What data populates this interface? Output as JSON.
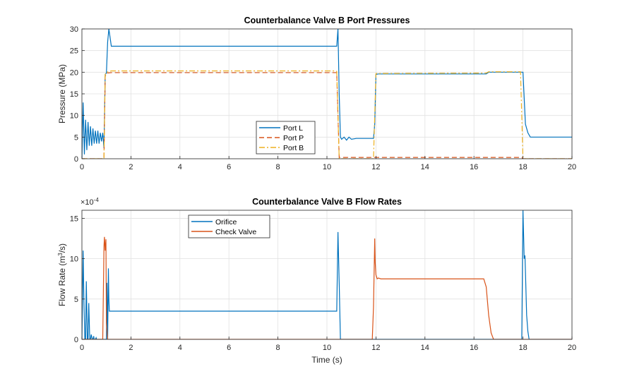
{
  "colors": {
    "blue": "#0072BD",
    "orange": "#D95319",
    "yellow": "#EDB120"
  },
  "chart_data": [
    {
      "type": "line",
      "title": "Counterbalance Valve B Port Pressures",
      "xlabel": "",
      "ylabel": "Pressure (MPa)",
      "xlim": [
        0,
        20
      ],
      "ylim": [
        0,
        30
      ],
      "xticks": [
        "0",
        "2",
        "4",
        "6",
        "8",
        "10",
        "12",
        "14",
        "16",
        "18",
        "20"
      ],
      "yticks": [
        "0",
        "5",
        "10",
        "15",
        "20",
        "25",
        "30"
      ],
      "grid": true,
      "legend_position": "center-bottom",
      "series": [
        {
          "name": "Port L",
          "color": "#0072BD",
          "dash": "solid",
          "x": [
            0,
            0.05,
            0.1,
            0.15,
            0.2,
            0.25,
            0.3,
            0.35,
            0.4,
            0.45,
            0.5,
            0.55,
            0.6,
            0.65,
            0.7,
            0.75,
            0.8,
            0.85,
            0.9,
            0.95,
            1.0,
            1.05,
            1.1,
            1.15,
            1.2,
            1.3,
            10.3,
            10.4,
            10.45,
            10.5,
            10.55,
            10.6,
            10.7,
            10.8,
            10.9,
            11.0,
            11.2,
            11.5,
            11.9,
            11.95,
            12.0,
            12.1,
            12.5,
            16.5,
            16.6,
            17.9,
            17.95,
            18.0,
            18.1,
            18.2,
            18.3,
            18.5,
            20
          ],
          "y": [
            0,
            13,
            1,
            9,
            2,
            8.5,
            3,
            7.5,
            3,
            7,
            3.5,
            6.5,
            3.5,
            6.5,
            3.5,
            6,
            4,
            6,
            2.5,
            19.5,
            19.8,
            27,
            30,
            28,
            26,
            26,
            26,
            26,
            30,
            15,
            5,
            4.5,
            5,
            4.3,
            5,
            4.5,
            4.7,
            4.7,
            4.7,
            8,
            19.5,
            19.6,
            19.6,
            19.6,
            20,
            20,
            20,
            20,
            8,
            6,
            5,
            5,
            5
          ]
        },
        {
          "name": "Port P",
          "color": "#D95319",
          "dash": "dash",
          "x": [
            0,
            0.9,
            0.95,
            1.0,
            1.2,
            10.3,
            10.4,
            10.45,
            10.5,
            10.6,
            11.9,
            16.5,
            17.9,
            17.95,
            18.0,
            20
          ],
          "y": [
            0,
            0,
            19,
            19.8,
            19.9,
            19.9,
            19.9,
            10,
            0.3,
            0.3,
            0.3,
            0.3,
            0.3,
            0.3,
            0,
            0
          ]
        },
        {
          "name": "Port B",
          "color": "#EDB120",
          "dash": "dashdot",
          "x": [
            0,
            0.9,
            0.95,
            1.0,
            1.2,
            10.3,
            10.4,
            10.45,
            10.5,
            11.9,
            11.95,
            12.0,
            12.2,
            16.5,
            16.6,
            17.9,
            17.95,
            18.0,
            20
          ],
          "y": [
            0,
            0,
            19.5,
            20,
            20.3,
            20.3,
            20.2,
            10,
            0,
            0,
            10,
            19.7,
            19.7,
            19.8,
            20.1,
            20.1,
            10,
            0,
            0
          ]
        }
      ]
    },
    {
      "type": "line",
      "title": "Counterbalance Valve B Flow Rates",
      "xlabel": "Time (s)",
      "ylabel": "Flow  Rate  (m",
      "ylabel_sup": "3",
      "ylabel_tail": "/s)",
      "exponent_label": "×10",
      "exponent_power": "-4",
      "xlim": [
        0,
        20
      ],
      "ylim": [
        0,
        16
      ],
      "xticks": [
        "0",
        "2",
        "4",
        "6",
        "8",
        "10",
        "12",
        "14",
        "16",
        "18",
        "20"
      ],
      "yticks": [
        "0",
        "5",
        "10",
        "15"
      ],
      "grid": true,
      "legend_position": "top-left",
      "series": [
        {
          "name": "Orifice",
          "color": "#0072BD",
          "dash": "solid",
          "x": [
            0,
            0.05,
            0.08,
            0.12,
            0.15,
            0.18,
            0.22,
            0.25,
            0.28,
            0.32,
            0.35,
            0.38,
            0.42,
            0.45,
            0.48,
            0.5,
            0.55,
            0.58,
            0.6,
            0.62,
            1.0,
            1.02,
            1.05,
            1.08,
            1.1,
            1.12,
            1.15,
            1.2,
            10.3,
            10.4,
            10.45,
            10.5,
            10.55,
            10.6,
            17.95,
            18.0,
            18.05,
            18.08,
            18.1,
            18.15,
            18.2,
            18.25,
            20
          ],
          "y": [
            0,
            11,
            5,
            0,
            0,
            7.2,
            0,
            0,
            4.5,
            0,
            0,
            0.6,
            0,
            0,
            0.4,
            0,
            0,
            0.2,
            0,
            0,
            0,
            7,
            0,
            8.8,
            5,
            3.5,
            3.5,
            3.5,
            3.5,
            3.5,
            13.3,
            7,
            0,
            0,
            0,
            16,
            10,
            10.4,
            8.5,
            3,
            1,
            0,
            0
          ]
        },
        {
          "name": "Check Valve",
          "color": "#D95319",
          "dash": "solid",
          "x": [
            0,
            0.85,
            0.9,
            0.92,
            0.95,
            0.98,
            1.0,
            1.05,
            1.1,
            11.85,
            11.9,
            11.95,
            11.97,
            12.0,
            12.05,
            12.1,
            12.2,
            16.4,
            16.5,
            16.6,
            16.7,
            16.8,
            20
          ],
          "y": [
            0,
            0,
            11.5,
            12.7,
            11,
            12.4,
            2,
            0,
            0,
            0,
            4,
            12.5,
            9.5,
            8,
            7.5,
            7.6,
            7.5,
            7.5,
            6.5,
            3,
            0.8,
            0,
            0
          ]
        }
      ]
    }
  ]
}
